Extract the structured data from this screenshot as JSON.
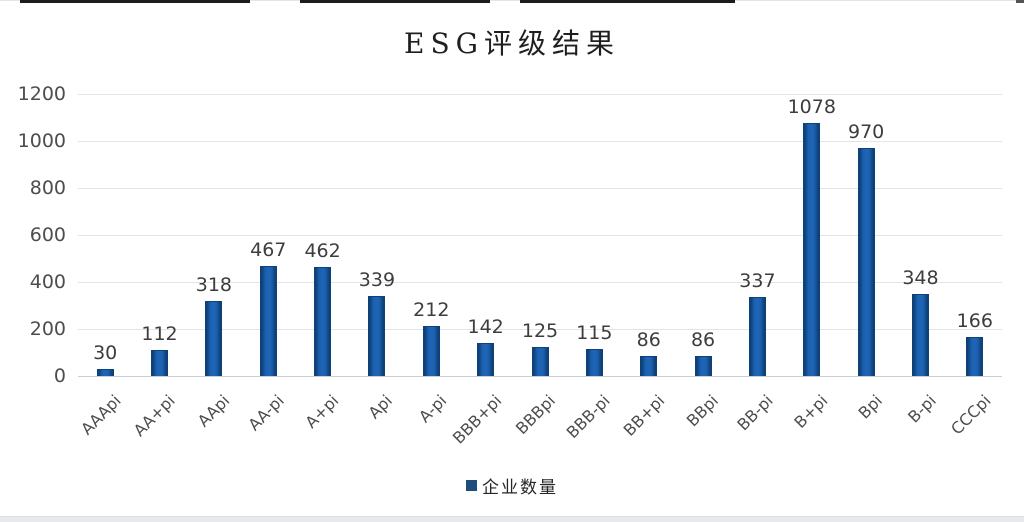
{
  "title": "ESG评级结果",
  "legend": {
    "label": "企业数量"
  },
  "colors": {
    "bar_fill_center": "#2066b6",
    "bar_fill_mid": "#1b5fae",
    "bar_edge": "#0f4179",
    "gridline": "#e1e4e9",
    "axis_line": "#c9ced6",
    "value_label_text": "#3d3d3d",
    "tick_text": "#4d4d4d",
    "title_text": "#1f1f1f",
    "legend_marker": "#1f4e79"
  },
  "chart_data": {
    "type": "bar",
    "title": "ESG评级结果",
    "series_name": "企业数量",
    "categories": [
      "AAApi",
      "AA+pi",
      "AApi",
      "AA-pi",
      "A+pi",
      "Api",
      "A-pi",
      "BBB+pi",
      "BBBpi",
      "BBB-pi",
      "BB+pi",
      "BBpi",
      "BB-pi",
      "B+pi",
      "Bpi",
      "B-pi",
      "CCCpi"
    ],
    "values": [
      30,
      112,
      318,
      467,
      462,
      339,
      212,
      142,
      125,
      115,
      86,
      86,
      337,
      1078,
      970,
      348,
      166
    ],
    "y_ticks": [
      0,
      200,
      400,
      600,
      800,
      1000,
      1200
    ],
    "ylim": [
      0,
      1200
    ],
    "grid": true,
    "data_labels": true,
    "legend_position": "bottom",
    "xlabel": "",
    "ylabel": ""
  }
}
